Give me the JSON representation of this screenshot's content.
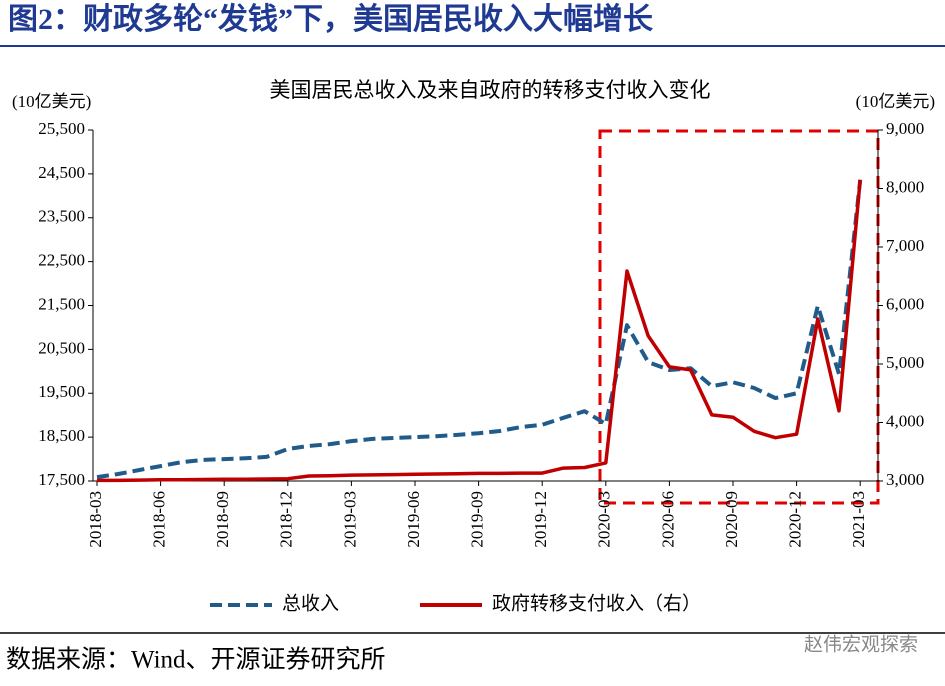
{
  "header": {
    "title": "图2：财政多轮“发钱”下，美国居民收入大幅增长"
  },
  "source": "数据来源：Wind、开源证券研究所",
  "watermark": "赵伟宏观探索",
  "chart_data": {
    "type": "line",
    "title": "美国居民总收入及来自政府的转移支付收入变化",
    "y_label": "(10亿美元)",
    "y2_label": "(10亿美元)",
    "categories": [
      "2018-03",
      null,
      null,
      "2018-06",
      null,
      null,
      "2018-09",
      null,
      null,
      "2018-12",
      null,
      null,
      "2019-03",
      null,
      null,
      "2019-06",
      null,
      null,
      "2019-09",
      null,
      null,
      "2019-12",
      null,
      null,
      "2020-03",
      null,
      null,
      "2020-06",
      null,
      null,
      "2020-09",
      null,
      null,
      "2020-12",
      null,
      null,
      "2021-03"
    ],
    "series": [
      {
        "name": "总收入",
        "color": "#1f5c8b",
        "style": "dashed",
        "axis": "y",
        "values": [
          17590,
          17660,
          17750,
          17840,
          17930,
          17980,
          18000,
          18020,
          18050,
          18230,
          18300,
          18340,
          18410,
          18460,
          18480,
          18500,
          18520,
          18550,
          18590,
          18640,
          18730,
          18780,
          18940,
          19090,
          18800,
          21050,
          20210,
          20030,
          20070,
          19660,
          19750,
          19620,
          19390,
          19500,
          21490,
          19940,
          24360
        ]
      },
      {
        "name": "政府转移支付收入（右）",
        "color": "#c00000",
        "style": "solid",
        "axis": "y2",
        "values": [
          3010,
          3010,
          3015,
          3020,
          3020,
          3025,
          3030,
          3030,
          3035,
          3040,
          3085,
          3090,
          3100,
          3105,
          3110,
          3115,
          3120,
          3125,
          3130,
          3130,
          3135,
          3135,
          3220,
          3230,
          3310,
          6590,
          5480,
          4950,
          4900,
          4130,
          4090,
          3850,
          3740,
          3800,
          5770,
          4200,
          8150
        ]
      }
    ],
    "ylim": [
      17500,
      25500
    ],
    "yticks": [
      {
        "value": 17500,
        "label": "17,500"
      },
      {
        "value": 18500,
        "label": "18,500"
      },
      {
        "value": 19500,
        "label": "19,500"
      },
      {
        "value": 20500,
        "label": "20,500"
      },
      {
        "value": 21500,
        "label": "21,500"
      },
      {
        "value": 22500,
        "label": "22,500"
      },
      {
        "value": 23500,
        "label": "23,500"
      },
      {
        "value": 24500,
        "label": "24,500"
      },
      {
        "value": 25500,
        "label": "25,500"
      }
    ],
    "y2lim": [
      3000,
      9000
    ],
    "y2ticks": [
      {
        "value": 3000,
        "label": "3,000"
      },
      {
        "value": 4000,
        "label": "4,000"
      },
      {
        "value": 5000,
        "label": "5,000"
      },
      {
        "value": 6000,
        "label": "6,000"
      },
      {
        "value": 7000,
        "label": "7,000"
      },
      {
        "value": 8000,
        "label": "8,000"
      },
      {
        "value": 9000,
        "label": "9,000"
      }
    ],
    "grid": false
  }
}
